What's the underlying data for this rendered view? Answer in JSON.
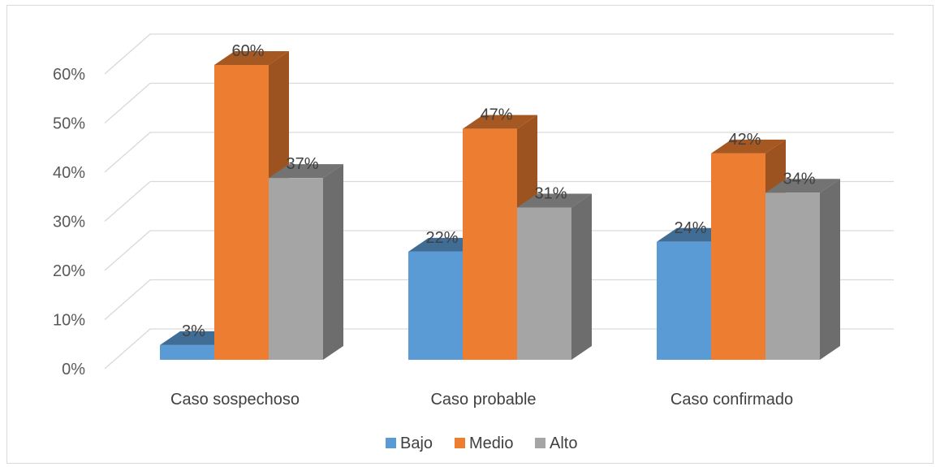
{
  "chart_data": {
    "type": "bar",
    "categories": [
      "Caso sospechoso",
      "Caso probable",
      "Caso confirmado"
    ],
    "series": [
      {
        "name": "Bajo",
        "values": [
          3,
          22,
          24
        ],
        "color": "#5b9bd5"
      },
      {
        "name": "Medio",
        "values": [
          60,
          47,
          42
        ],
        "color": "#ed7d31"
      },
      {
        "name": "Alto",
        "values": [
          37,
          31,
          34
        ],
        "color": "#a5a5a5"
      }
    ],
    "value_labels": [
      [
        "3%",
        "22%",
        "24%"
      ],
      [
        "60%",
        "47%",
        "42%"
      ],
      [
        "37%",
        "31%",
        "34%"
      ]
    ],
    "y_ticks": [
      "0%",
      "10%",
      "20%",
      "30%",
      "40%",
      "50%",
      "60%"
    ],
    "ylim": [
      0,
      60
    ],
    "y_unit": "%",
    "grid": true,
    "legend_position": "bottom",
    "style": "3d-clustered-column"
  }
}
